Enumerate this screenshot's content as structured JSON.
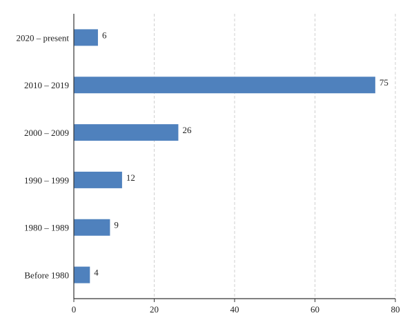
{
  "chart_data": {
    "type": "bar",
    "orientation": "horizontal",
    "categories": [
      "2020 – present",
      "2010 – 2019",
      "2000 – 2009",
      "1990 – 1999",
      "1980 – 1989",
      "Before 1980"
    ],
    "values": [
      6,
      75,
      26,
      12,
      9,
      4
    ],
    "data_labels": [
      "6",
      "75",
      "26",
      "12",
      "9",
      "4"
    ],
    "title": "",
    "xlabel": "",
    "ylabel": "",
    "xlim": [
      0,
      80
    ],
    "xticks": [
      0,
      20,
      40,
      60,
      80
    ],
    "xtick_labels": [
      "0",
      "20",
      "40",
      "60",
      "80"
    ],
    "grid": "vertical dashed",
    "legend": "none",
    "bar_color": "#4f81bd"
  }
}
